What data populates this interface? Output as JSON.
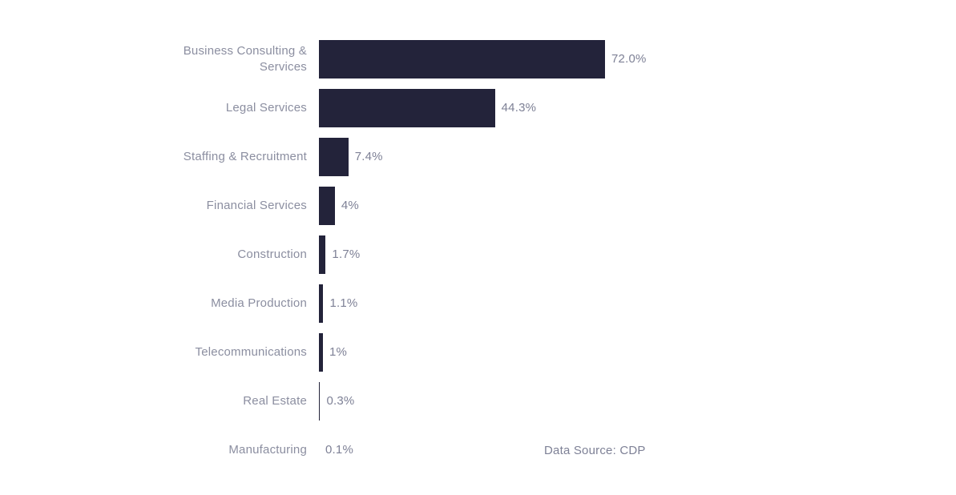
{
  "chart_data": {
    "type": "bar",
    "orientation": "horizontal",
    "title": "",
    "xlabel": "",
    "ylabel": "",
    "grid": false,
    "legend": false,
    "xlim": [
      0,
      80
    ],
    "categories": [
      "Business Consulting & Services",
      "Legal Services",
      "Staffing & Recruitment",
      "Financial Services",
      "Construction",
      "Media Production",
      "Telecommunications",
      "Real Estate",
      "Manufacturing"
    ],
    "values": [
      72.0,
      44.3,
      7.4,
      4,
      1.7,
      1.1,
      1,
      0.3,
      0.1
    ],
    "value_labels": [
      "72.0%",
      "44.3%",
      "7.4%",
      "4%",
      "1.7%",
      "1.1%",
      "1%",
      "0.3%",
      "0.1%"
    ],
    "colors": {
      "bar": "#23233A",
      "category_label": "#8b8ea0",
      "value_label": "#7e8196",
      "background": "#ffffff"
    }
  },
  "footer": {
    "data_source": "Data Source: CDP"
  }
}
